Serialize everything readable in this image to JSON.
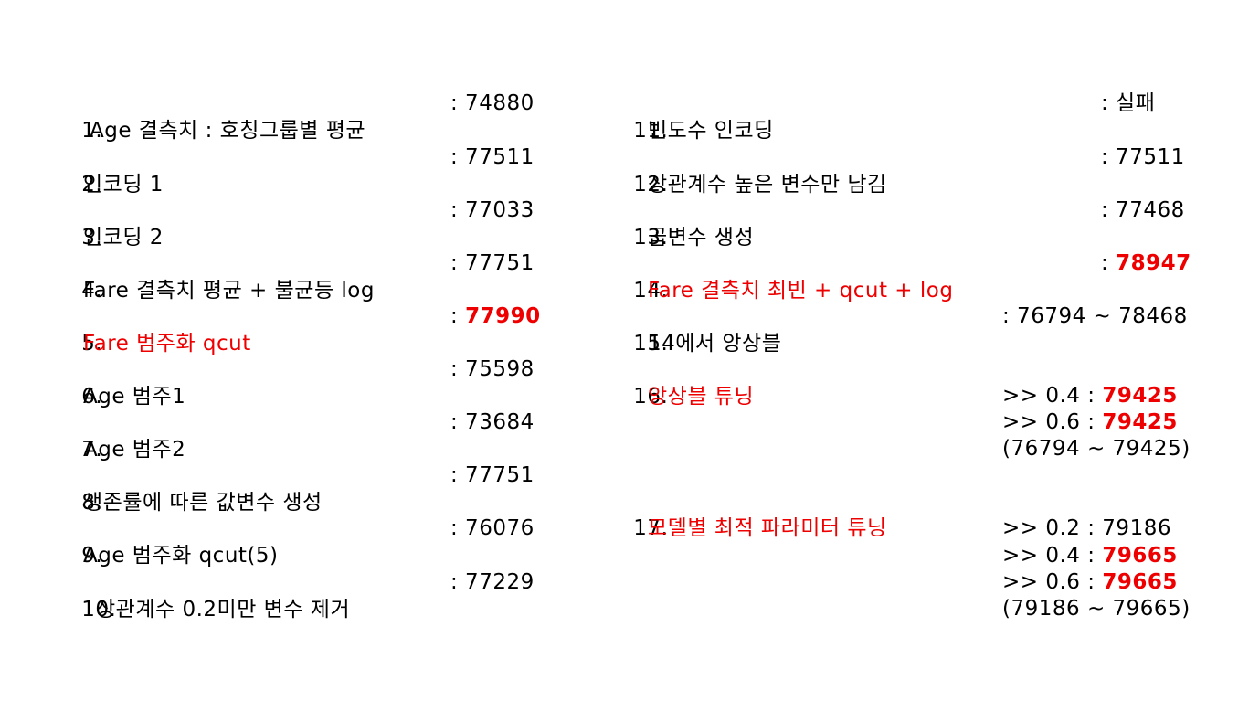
{
  "colors": {
    "highlight": "#ee0000",
    "text": "#000000",
    "background": "#ffffff"
  },
  "left": [
    {
      "num": "1.",
      "label": "Age 결측치 : 호칭그룹별 평균",
      "score": ": 74880"
    },
    {
      "num": "2.",
      "label": "인코딩 1",
      "score": ": 77511"
    },
    {
      "num": "3.",
      "label": "인코딩 2",
      "score": ": 77033"
    },
    {
      "num": "4.",
      "label": "Fare 결측치 평균 + 불균등 log",
      "score": ": 77751"
    },
    {
      "num": "5.",
      "label": "Fare 범주화 qcut",
      "score_prefix": ": ",
      "score_value": "77990"
    },
    {
      "num": "6.",
      "label": "Age 범주1",
      "score": ": 75598"
    },
    {
      "num": "7.",
      "label": "Age 범주2",
      "score": ": 73684"
    },
    {
      "num": "8.",
      "label": "생존률에 따른 값변수 생성",
      "score": ": 77751"
    },
    {
      "num": "9.",
      "label": "Age 범주화 qcut(5)",
      "score": ": 76076"
    },
    {
      "num": "10.",
      "label": "상관계수 0.2미만 변수 제거",
      "score": ": 77229"
    }
  ],
  "right": [
    {
      "num": "11.",
      "label": "빈도수 인코딩",
      "score": ": 실패"
    },
    {
      "num": "12.",
      "label": "상관계수 높은 변수만 남김",
      "score": ": 77511"
    },
    {
      "num": "13.",
      "label": "곱변수 생성",
      "score": ": 77468"
    },
    {
      "num": "14.",
      "label": "Fare 결측치 최빈 + qcut + log",
      "score_prefix": ": ",
      "score_value": "78947"
    },
    {
      "num": "15.",
      "label": "14에서 앙상블",
      "score": ": 76794 ~ 78468"
    },
    {
      "num": "16.",
      "label": "앙상블 튜닝",
      "lines": [
        {
          "prefix": ">> 0.4 : ",
          "value": "79425"
        },
        {
          "prefix": ">> 0.6 : ",
          "value": "79425"
        }
      ],
      "range": "(76794 ~ 79425)"
    },
    {
      "num": "17.",
      "label": "모델별 최적 파라미터 튜닝",
      "line_plain": ">> 0.2 : 79186",
      "lines": [
        {
          "prefix": ">> 0.4 : ",
          "value": "79665"
        },
        {
          "prefix": ">> 0.6 : ",
          "value": "79665"
        }
      ],
      "range": "(79186 ~ 79665)"
    }
  ]
}
